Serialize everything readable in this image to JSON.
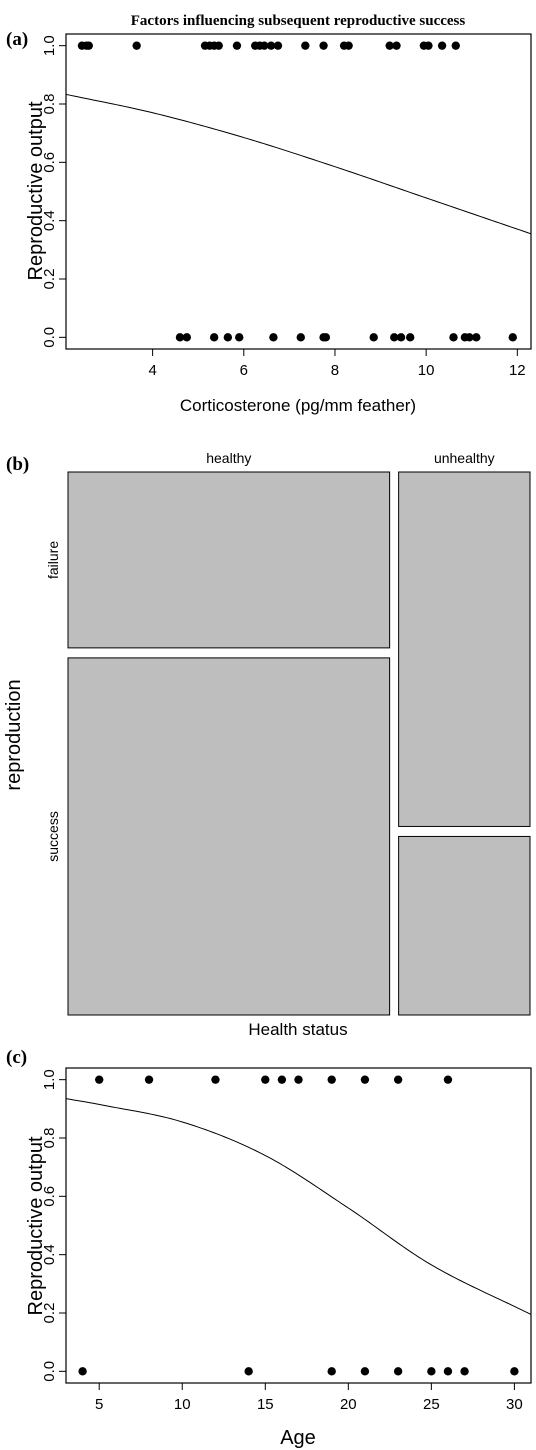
{
  "title": "Factors influencing subsequent reproductive success",
  "chart_data": [
    {
      "panel": "(a)",
      "type": "scatter",
      "xlabel": "Corticosterone (pg/mm feather)",
      "ylabel": "Reproductive output",
      "xlim": [
        2.1,
        12.3
      ],
      "ylim": [
        -0.04,
        1.04
      ],
      "xticks": [
        4,
        6,
        8,
        10,
        12
      ],
      "yticks": [
        0.0,
        0.2,
        0.4,
        0.6,
        0.8,
        1.0
      ],
      "ytick_labels": [
        "0.0",
        "0.2",
        "0.4",
        "0.6",
        "0.8",
        "1.0"
      ],
      "points_y1": [
        2.45,
        2.55,
        2.6,
        3.65,
        5.15,
        5.25,
        5.35,
        5.45,
        5.85,
        6.25,
        6.35,
        6.45,
        6.6,
        6.75,
        7.35,
        7.75,
        8.2,
        8.3,
        9.2,
        9.35,
        9.95,
        10.05,
        10.35,
        10.65
      ],
      "points_y0": [
        4.6,
        4.75,
        5.35,
        5.65,
        5.9,
        6.65,
        7.25,
        7.75,
        7.8,
        8.85,
        9.3,
        9.45,
        9.65,
        10.6,
        10.85,
        10.95,
        11.1,
        11.9
      ],
      "fit_curve": {
        "type": "logistic",
        "x_start": 2.1,
        "x_end": 12.3,
        "points": [
          [
            2.1,
            0.833
          ],
          [
            4,
            0.77
          ],
          [
            6,
            0.685
          ],
          [
            8,
            0.585
          ],
          [
            10,
            0.478
          ],
          [
            12,
            0.371
          ],
          [
            12.3,
            0.355
          ]
        ]
      }
    },
    {
      "panel": "(b)",
      "type": "mosaic",
      "xlabel": "Health status",
      "ylabel": "reproduction",
      "columns": [
        "healthy",
        "unhealthy"
      ],
      "rows": [
        "failure",
        "success"
      ],
      "column_widths": [
        0.71,
        0.29
      ],
      "failure_proportion": {
        "healthy": 0.33,
        "unhealthy": 0.665
      }
    },
    {
      "panel": "(c)",
      "type": "scatter",
      "xlabel": "Age",
      "ylabel": "Reproductive output",
      "xlim": [
        3,
        31
      ],
      "ylim": [
        -0.04,
        1.04
      ],
      "xticks": [
        5,
        10,
        15,
        20,
        25,
        30
      ],
      "yticks": [
        0.0,
        0.2,
        0.4,
        0.6,
        0.8,
        1.0
      ],
      "ytick_labels": [
        "0.0",
        "0.2",
        "0.4",
        "0.6",
        "0.8",
        "1.0"
      ],
      "points_y1": [
        5,
        8,
        12,
        15,
        16,
        17,
        19,
        21,
        23,
        26
      ],
      "points_y0": [
        4,
        14,
        19,
        21,
        23,
        25,
        26,
        27,
        30
      ],
      "fit_curve": {
        "type": "logistic",
        "x_start": 3,
        "x_end": 31,
        "points": [
          [
            3,
            0.935
          ],
          [
            5,
            0.915
          ],
          [
            10,
            0.855
          ],
          [
            15,
            0.74
          ],
          [
            20,
            0.56
          ],
          [
            25,
            0.365
          ],
          [
            31,
            0.195
          ]
        ]
      }
    }
  ]
}
